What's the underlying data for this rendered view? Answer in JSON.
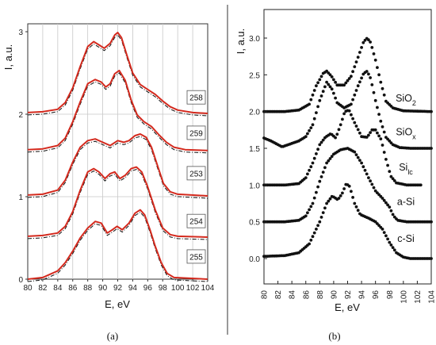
{
  "chart_data": [
    {
      "type": "line",
      "panel": "(a)",
      "xlabel": "E, eV",
      "ylabel": "I, a.u.",
      "xlim": [
        80,
        104
      ],
      "ylim": [
        0,
        3.1
      ],
      "x_ticks": [
        80,
        82,
        84,
        86,
        88,
        90,
        92,
        94,
        96,
        98,
        100,
        102,
        104
      ],
      "y_ticks": [
        0,
        1,
        2,
        3
      ],
      "grid": true,
      "series": [
        {
          "name": "258",
          "offset": 2.0,
          "label_y": 2.2,
          "points": [
            [
              80,
              0.02
            ],
            [
              82,
              0.03
            ],
            [
              84,
              0.06
            ],
            [
              85,
              0.14
            ],
            [
              86,
              0.32
            ],
            [
              87,
              0.58
            ],
            [
              88,
              0.82
            ],
            [
              88.8,
              0.88
            ],
            [
              89.5,
              0.84
            ],
            [
              90.2,
              0.8
            ],
            [
              91,
              0.86
            ],
            [
              91.6,
              0.96
            ],
            [
              92,
              0.99
            ],
            [
              92.5,
              0.93
            ],
            [
              93.2,
              0.72
            ],
            [
              94,
              0.5
            ],
            [
              95,
              0.36
            ],
            [
              96,
              0.3
            ],
            [
              97,
              0.24
            ],
            [
              98,
              0.16
            ],
            [
              99,
              0.09
            ],
            [
              100,
              0.05
            ],
            [
              102,
              0.02
            ],
            [
              104,
              0.01
            ]
          ]
        },
        {
          "name": "259",
          "offset": 1.55,
          "label_y": 1.77,
          "points": [
            [
              80,
              0.02
            ],
            [
              82,
              0.03
            ],
            [
              84,
              0.07
            ],
            [
              85,
              0.16
            ],
            [
              86,
              0.36
            ],
            [
              87,
              0.6
            ],
            [
              88,
              0.82
            ],
            [
              89,
              0.87
            ],
            [
              89.8,
              0.84
            ],
            [
              90.4,
              0.78
            ],
            [
              91,
              0.82
            ],
            [
              91.6,
              0.94
            ],
            [
              92.2,
              0.98
            ],
            [
              93,
              0.86
            ],
            [
              93.8,
              0.62
            ],
            [
              94.6,
              0.44
            ],
            [
              95.5,
              0.36
            ],
            [
              96.5,
              0.3
            ],
            [
              97.5,
              0.2
            ],
            [
              98.5,
              0.11
            ],
            [
              99.5,
              0.05
            ],
            [
              101,
              0.02
            ],
            [
              104,
              0.01
            ]
          ]
        },
        {
          "name": "253",
          "offset": 1.0,
          "label_y": 1.28,
          "points": [
            [
              80,
              0.02
            ],
            [
              82,
              0.03
            ],
            [
              84,
              0.08
            ],
            [
              85,
              0.2
            ],
            [
              86,
              0.42
            ],
            [
              87,
              0.6
            ],
            [
              88,
              0.68
            ],
            [
              89,
              0.7
            ],
            [
              90,
              0.66
            ],
            [
              91,
              0.62
            ],
            [
              92,
              0.68
            ],
            [
              92.8,
              0.66
            ],
            [
              93.5,
              0.68
            ],
            [
              94.3,
              0.74
            ],
            [
              95,
              0.76
            ],
            [
              95.8,
              0.72
            ],
            [
              96.5,
              0.6
            ],
            [
              97.3,
              0.38
            ],
            [
              98.1,
              0.16
            ],
            [
              99,
              0.06
            ],
            [
              100,
              0.03
            ],
            [
              104,
              0.01
            ]
          ]
        },
        {
          "name": "254",
          "offset": 0.5,
          "label_y": 0.7,
          "points": [
            [
              80,
              0.02
            ],
            [
              82,
              0.03
            ],
            [
              84,
              0.06
            ],
            [
              85,
              0.14
            ],
            [
              86,
              0.32
            ],
            [
              87,
              0.58
            ],
            [
              88,
              0.8
            ],
            [
              88.8,
              0.84
            ],
            [
              89.5,
              0.8
            ],
            [
              90.3,
              0.72
            ],
            [
              91,
              0.78
            ],
            [
              91.6,
              0.8
            ],
            [
              92.3,
              0.72
            ],
            [
              93,
              0.76
            ],
            [
              93.8,
              0.84
            ],
            [
              94.5,
              0.86
            ],
            [
              95.2,
              0.8
            ],
            [
              96,
              0.62
            ],
            [
              97,
              0.34
            ],
            [
              98,
              0.12
            ],
            [
              99,
              0.04
            ],
            [
              100,
              0.02
            ],
            [
              104,
              0.01
            ]
          ]
        },
        {
          "name": "255",
          "offset": 0.0,
          "label_y": 0.27,
          "points": [
            [
              80,
              0.0
            ],
            [
              82,
              0.02
            ],
            [
              84,
              0.1
            ],
            [
              85,
              0.2
            ],
            [
              86,
              0.34
            ],
            [
              87,
              0.5
            ],
            [
              88,
              0.62
            ],
            [
              89,
              0.7
            ],
            [
              89.8,
              0.68
            ],
            [
              90.6,
              0.56
            ],
            [
              91.3,
              0.6
            ],
            [
              91.9,
              0.64
            ],
            [
              92.6,
              0.6
            ],
            [
              93.5,
              0.68
            ],
            [
              94.3,
              0.8
            ],
            [
              95,
              0.84
            ],
            [
              95.6,
              0.78
            ],
            [
              96.3,
              0.6
            ],
            [
              97,
              0.4
            ],
            [
              97.8,
              0.2
            ],
            [
              98.6,
              0.07
            ],
            [
              99.5,
              0.02
            ],
            [
              104,
              0.0
            ]
          ]
        }
      ]
    },
    {
      "type": "scatter",
      "panel": "(b)",
      "xlabel": "E, eV",
      "ylabel": "I, a.u.",
      "xlim": [
        80,
        104
      ],
      "ylim": [
        -0.1,
        3.2
      ],
      "x_ticks": [
        80,
        82,
        84,
        86,
        88,
        90,
        92,
        94,
        96,
        98,
        100,
        102,
        104
      ],
      "y_ticks": [
        "0.0",
        "0.5",
        "1.0",
        "1.5",
        "2.0",
        "2.5",
        "3.0"
      ],
      "grid": false,
      "series": [
        {
          "name": "SiO",
          "sub": "2",
          "label_y": 2.18,
          "points": [
            [
              80,
              2.0
            ],
            [
              83,
              2.0
            ],
            [
              85,
              2.02
            ],
            [
              86.5,
              2.1
            ],
            [
              87.5,
              2.35
            ],
            [
              88.5,
              2.52
            ],
            [
              89,
              2.55
            ],
            [
              89.7,
              2.48
            ],
            [
              90.5,
              2.36
            ],
            [
              91.5,
              2.36
            ],
            [
              92.5,
              2.48
            ],
            [
              93.5,
              2.74
            ],
            [
              94.3,
              2.95
            ],
            [
              94.8,
              3.0
            ],
            [
              95.3,
              2.94
            ],
            [
              96,
              2.7
            ],
            [
              96.8,
              2.38
            ],
            [
              97.5,
              2.14
            ],
            [
              98.5,
              2.05
            ],
            [
              100,
              2.01
            ],
            [
              104,
              2.0
            ]
          ]
        },
        {
          "name": "SiO",
          "sub": "x",
          "label_y": 1.72,
          "points": [
            [
              80,
              1.64
            ],
            [
              81,
              1.6
            ],
            [
              82,
              1.55
            ],
            [
              82.6,
              1.52
            ],
            [
              83.5,
              1.55
            ],
            [
              85,
              1.6
            ],
            [
              86,
              1.66
            ],
            [
              87,
              1.82
            ],
            [
              88,
              2.15
            ],
            [
              89,
              2.4
            ],
            [
              89.8,
              2.3
            ],
            [
              90.5,
              2.12
            ],
            [
              91.5,
              2.05
            ],
            [
              92.5,
              2.1
            ],
            [
              93.5,
              2.35
            ],
            [
              94.3,
              2.52
            ],
            [
              94.8,
              2.55
            ],
            [
              95.3,
              2.45
            ],
            [
              96,
              2.15
            ],
            [
              96.8,
              1.85
            ],
            [
              97.5,
              1.65
            ],
            [
              98.5,
              1.55
            ],
            [
              99.5,
              1.51
            ],
            [
              101,
              1.5
            ],
            [
              104,
              1.5
            ]
          ]
        },
        {
          "name": "Si",
          "sub": "lc",
          "label_y": 1.24,
          "points": [
            [
              80,
              1.0
            ],
            [
              83,
              1.0
            ],
            [
              85,
              1.02
            ],
            [
              86,
              1.1
            ],
            [
              87,
              1.3
            ],
            [
              88,
              1.55
            ],
            [
              88.8,
              1.65
            ],
            [
              89.6,
              1.7
            ],
            [
              90.3,
              1.64
            ],
            [
              91,
              1.82
            ],
            [
              91.6,
              2.0
            ],
            [
              92.2,
              2.02
            ],
            [
              93,
              1.85
            ],
            [
              94,
              1.66
            ],
            [
              94.8,
              1.65
            ],
            [
              95.5,
              1.75
            ],
            [
              96,
              1.75
            ],
            [
              96.8,
              1.62
            ],
            [
              97.5,
              1.35
            ],
            [
              98.2,
              1.12
            ],
            [
              99,
              1.03
            ],
            [
              100.5,
              1.0
            ],
            [
              102.5,
              1.0
            ]
          ]
        },
        {
          "name": "a-Si",
          "sub": "",
          "label_y": 0.77,
          "points": [
            [
              80,
              0.5
            ],
            [
              83,
              0.5
            ],
            [
              85,
              0.52
            ],
            [
              86,
              0.58
            ],
            [
              87,
              0.75
            ],
            [
              88,
              1.05
            ],
            [
              89,
              1.3
            ],
            [
              90,
              1.42
            ],
            [
              91,
              1.48
            ],
            [
              92,
              1.5
            ],
            [
              93,
              1.45
            ],
            [
              94,
              1.3
            ],
            [
              95,
              1.1
            ],
            [
              96,
              0.92
            ],
            [
              97,
              0.82
            ],
            [
              98,
              0.7
            ],
            [
              98.6,
              0.58
            ],
            [
              99.2,
              0.52
            ],
            [
              100.5,
              0.5
            ],
            [
              104,
              0.5
            ]
          ]
        },
        {
          "name": "c-Si",
          "sub": "",
          "label_y": 0.27,
          "points": [
            [
              80,
              0.03
            ],
            [
              83,
              0.04
            ],
            [
              85,
              0.08
            ],
            [
              86.5,
              0.2
            ],
            [
              88,
              0.5
            ],
            [
              89,
              0.75
            ],
            [
              89.8,
              0.85
            ],
            [
              90.6,
              0.8
            ],
            [
              91.2,
              0.88
            ],
            [
              91.8,
              1.02
            ],
            [
              92.3,
              0.98
            ],
            [
              93,
              0.75
            ],
            [
              93.8,
              0.6
            ],
            [
              95,
              0.55
            ],
            [
              96,
              0.5
            ],
            [
              97,
              0.4
            ],
            [
              98,
              0.22
            ],
            [
              99,
              0.08
            ],
            [
              100,
              0.02
            ],
            [
              101,
              0.0
            ],
            [
              104,
              0.0
            ]
          ]
        }
      ]
    }
  ]
}
